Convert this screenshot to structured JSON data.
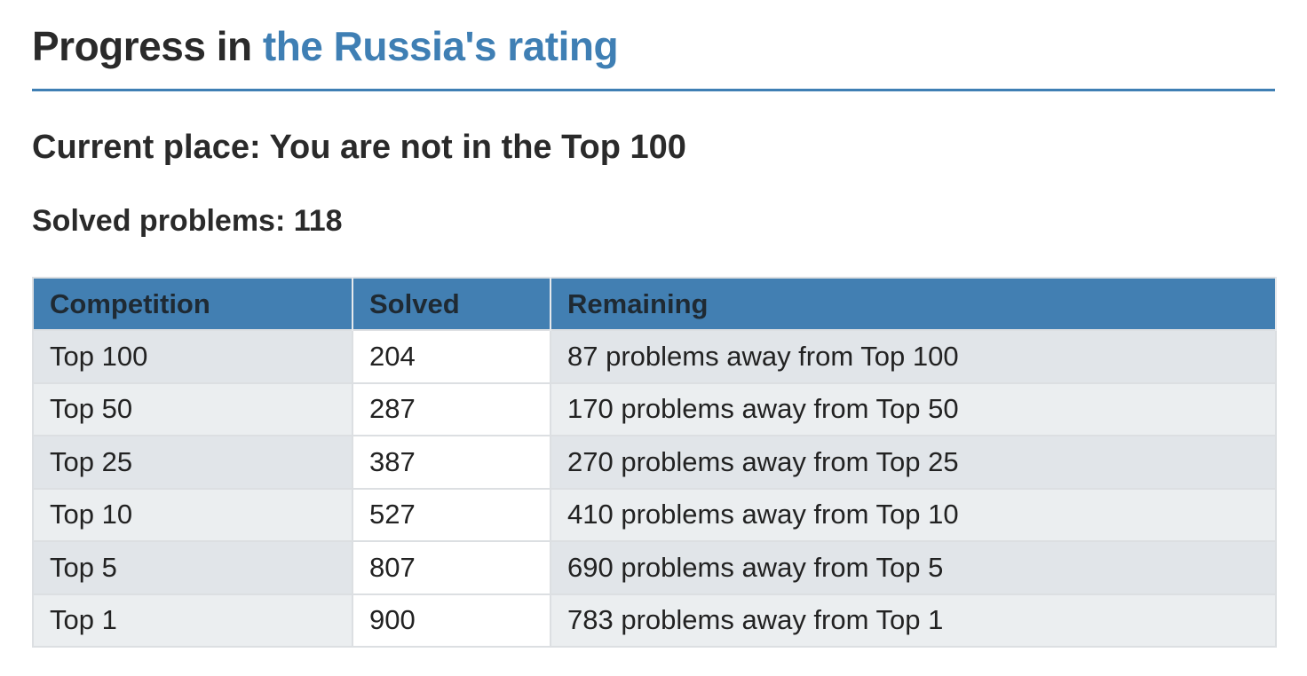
{
  "header": {
    "title_prefix": "Progress in ",
    "title_link": "the Russia's rating"
  },
  "current_place": "Current place: You are not in the Top 100",
  "solved_problems": "Solved problems: 118",
  "table": {
    "columns": [
      "Competition",
      "Solved",
      "Remaining"
    ],
    "rows": [
      {
        "competition": "Top 100",
        "solved": "204",
        "remaining": "87 problems away from Top 100"
      },
      {
        "competition": "Top 50",
        "solved": "287",
        "remaining": "170 problems away from Top 50"
      },
      {
        "competition": "Top 25",
        "solved": "387",
        "remaining": "270 problems away from Top 25"
      },
      {
        "competition": "Top 10",
        "solved": "527",
        "remaining": "410 problems away from Top 10"
      },
      {
        "competition": "Top 5",
        "solved": "807",
        "remaining": "690 problems away from Top 5"
      },
      {
        "competition": "Top 1",
        "solved": "900",
        "remaining": "783 problems away from Top 1"
      }
    ]
  },
  "colors": {
    "accent": "#3f7fb4",
    "header_bg": "#427fb2"
  }
}
